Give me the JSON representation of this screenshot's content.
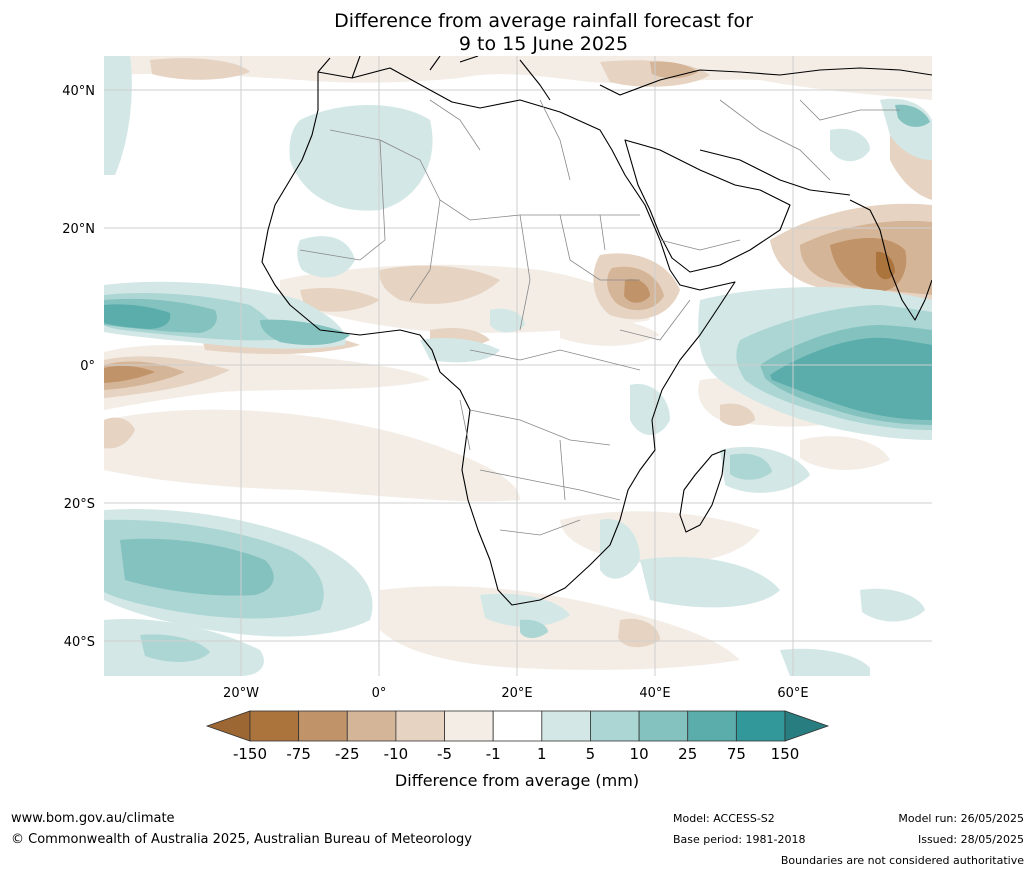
{
  "title": {
    "line1": "Difference from average rainfall forecast for",
    "line2": "9 to 15 June 2025"
  },
  "map": {
    "lat_labels": [
      "40°N",
      "20°N",
      "0°",
      "20°S",
      "40°S"
    ],
    "lon_labels": [
      "20°W",
      "0°",
      "20°E",
      "40°E",
      "60°E"
    ]
  },
  "colorbar": {
    "tick_labels": [
      "-150",
      "-75",
      "-25",
      "-10",
      "-5",
      "-1",
      "1",
      "5",
      "10",
      "25",
      "75",
      "150"
    ],
    "colors": [
      "#9d6733",
      "#ab743c",
      "#c19369",
      "#d5b598",
      "#e6d3c2",
      "#f3ede6",
      "#ffffff",
      "#d3e8e6",
      "#acd6d4",
      "#84c2c0",
      "#5aadab",
      "#32989a",
      "#287d80"
    ],
    "label": "Difference from average (mm)"
  },
  "footer": {
    "website": "www.bom.gov.au/climate",
    "copyright": "© Commonwealth of Australia 2025, Australian Bureau of Meteorology",
    "model": "Model: ACCESS-S2",
    "base_period": "Base period: 1981-2018",
    "model_run": "Model run: 26/05/2025",
    "issued": "Issued: 28/05/2025",
    "disclaimer": "Boundaries are not considered authoritative"
  }
}
